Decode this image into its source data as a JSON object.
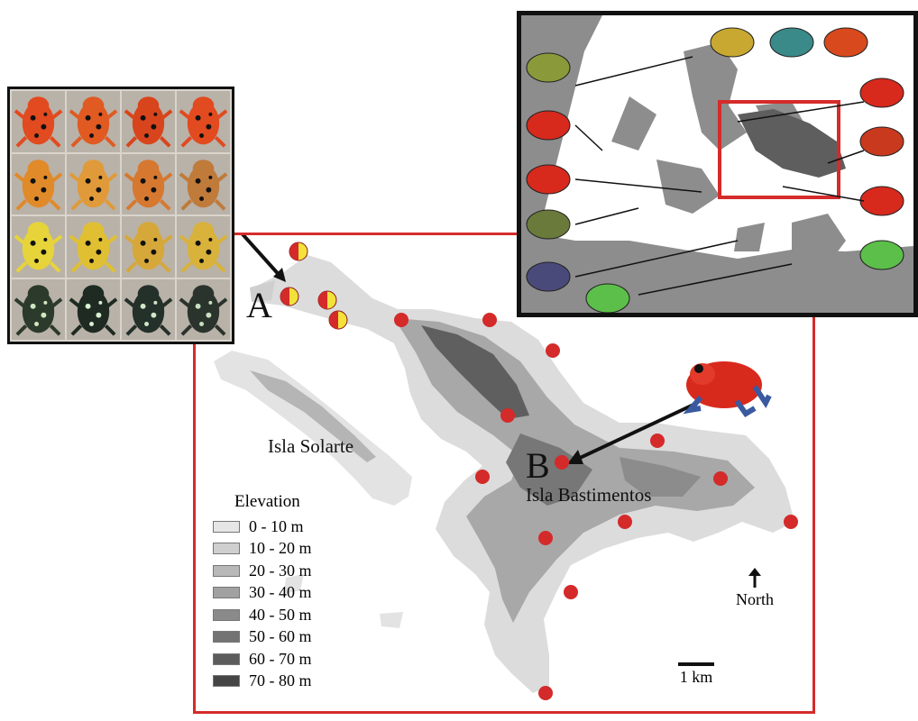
{
  "labels": {
    "island_solarte": "Isla Solarte",
    "island_bastimentos": "Isla Bastimentos",
    "site_a": "A",
    "site_b": "B"
  },
  "legend": {
    "title": "Elevation",
    "classes": [
      {
        "label": "0 - 10 m",
        "color": "#e6e6e6"
      },
      {
        "label": "10 - 20 m",
        "color": "#cfcfcf"
      },
      {
        "label": "20 - 30 m",
        "color": "#b8b8b8"
      },
      {
        "label": "30 - 40 m",
        "color": "#a1a1a1"
      },
      {
        "label": "40 - 50 m",
        "color": "#8a8a8a"
      },
      {
        "label": "50 - 60 m",
        "color": "#737373"
      },
      {
        "label": "60 - 70 m",
        "color": "#5c5c5c"
      },
      {
        "label": "70 - 80 m",
        "color": "#454545"
      }
    ]
  },
  "north_label": "North",
  "scale_label": "1 km",
  "colors": {
    "frame_red": "#d52b2b",
    "site_red": "#d42a2a",
    "pie_yellow": "#f2e23a",
    "land_light": "#e3e3e3",
    "inset_water": "#ffffff",
    "inset_land": "#8d8d8d",
    "inset_highlight": "#5e5e5e"
  },
  "icons": {
    "north_arrow": "north-arrow-icon",
    "frog": "frog-icon"
  }
}
